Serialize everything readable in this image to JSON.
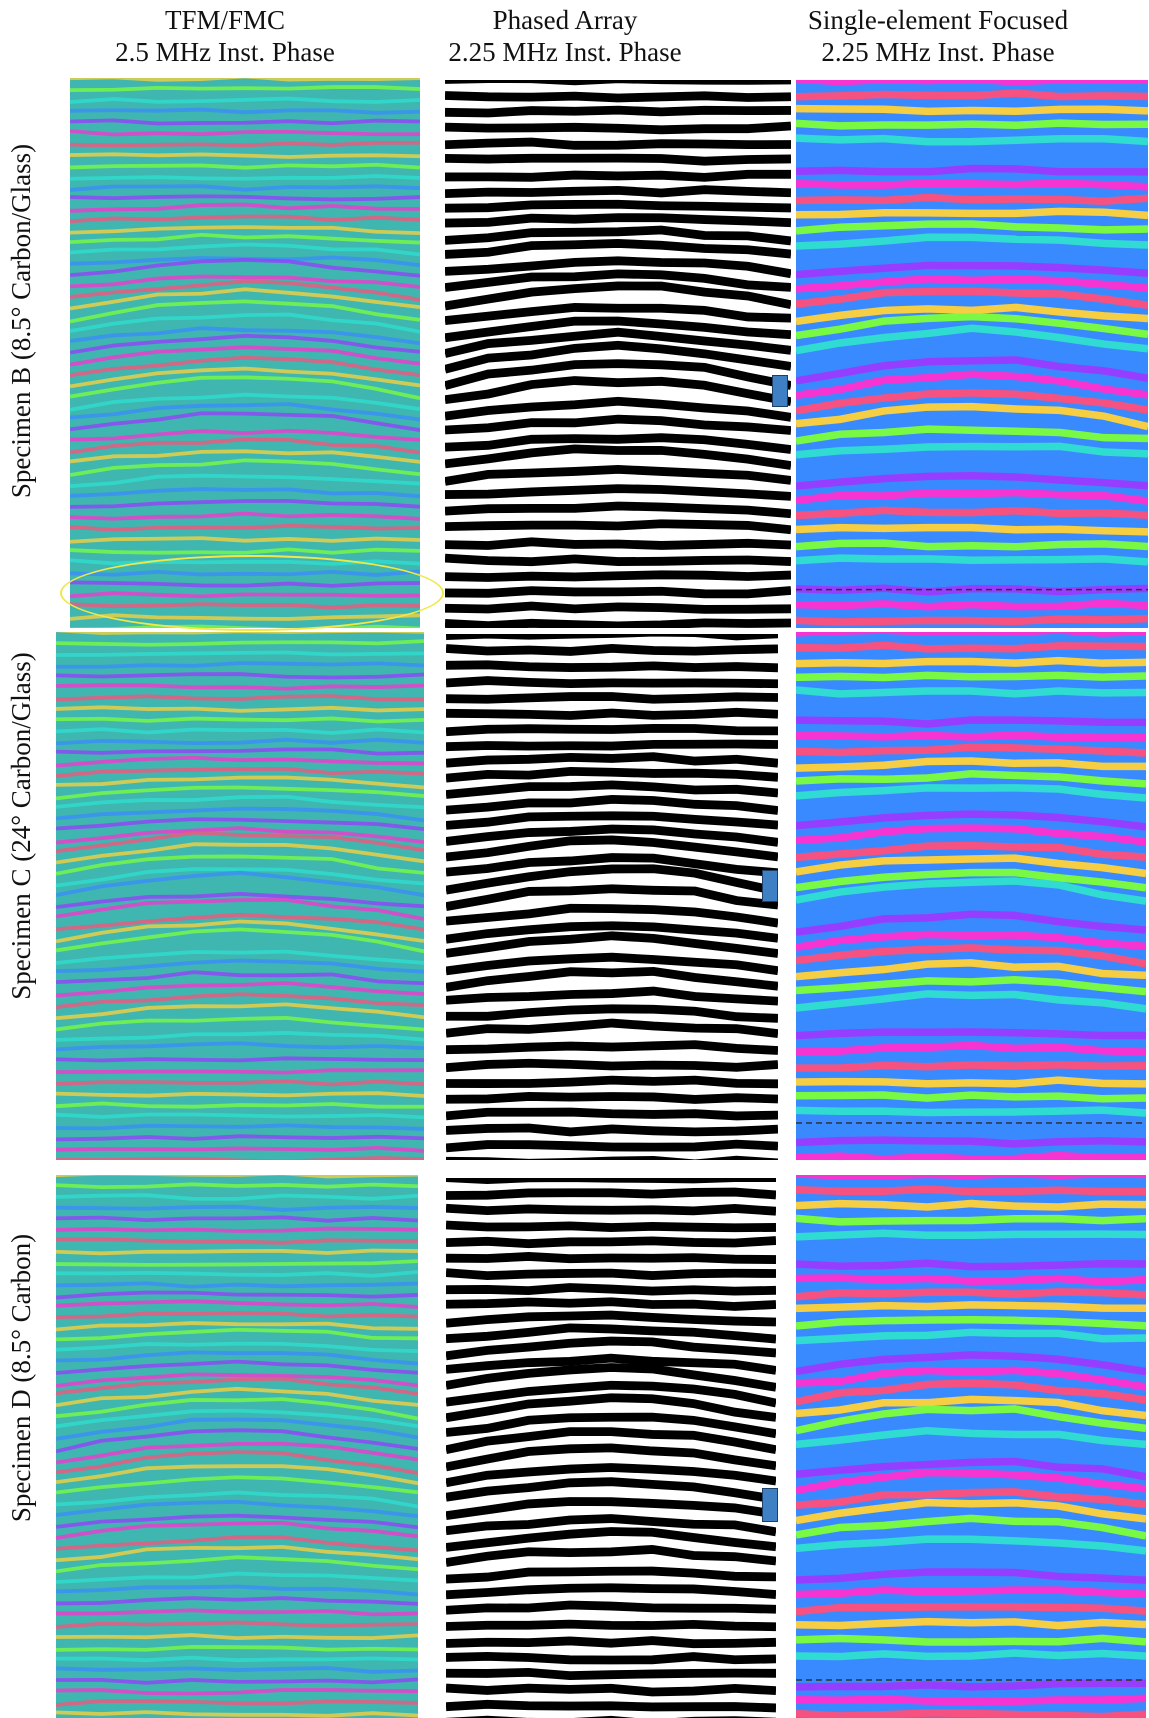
{
  "columns": [
    {
      "line1": "TFM/FMC",
      "line2": "2.5 MHz Inst. Phase"
    },
    {
      "line1": "Phased Array",
      "line2": "2.25 MHz Inst. Phase"
    },
    {
      "line1": "Single-element Focused",
      "line2": "2.25 MHz Inst. Phase"
    }
  ],
  "rows": [
    {
      "label": "Specimen B (8.5° Carbon/Glass)"
    },
    {
      "label": "Specimen C (24° Carbon/Glass)"
    },
    {
      "label": "Specimen D (8.5° Carbon)"
    }
  ],
  "colors": {
    "rainbow": [
      "#ff2fd0",
      "#ff4f7a",
      "#ffd23a",
      "#7dff3a",
      "#2fe0d0",
      "#3a8aff",
      "#9a3aff"
    ],
    "teal_base": "#3fb6b0",
    "binary_black": "#000000",
    "binary_white": "#ffffff",
    "marker": "#3f7fc4",
    "highlight_ellipse": "#f0e84a"
  }
}
